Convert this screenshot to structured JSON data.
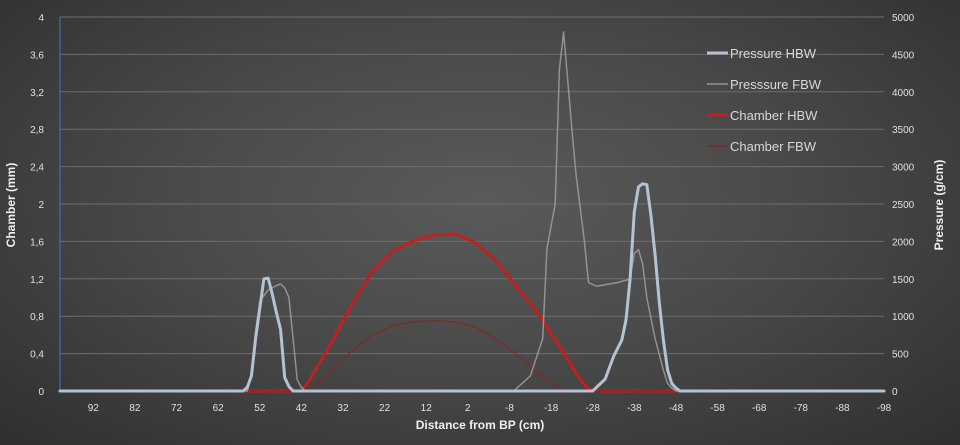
{
  "chart_data": {
    "type": "line",
    "title": "",
    "xlabel": "Distance from BP (cm)",
    "ylabel": "Chamber (mm)",
    "y2label": "Pressure (g/cm)",
    "xlim": [
      100,
      -98
    ],
    "ylim": [
      0,
      4
    ],
    "y2lim": [
      0,
      5000
    ],
    "x_ticks": [
      "92",
      "82",
      "72",
      "62",
      "52",
      "42",
      "32",
      "22",
      "12",
      "2",
      "-8",
      "-18",
      "-28",
      "-38",
      "-48",
      "-58",
      "-68",
      "-78",
      "-88",
      "-98"
    ],
    "y_ticks": [
      "0",
      "0,4",
      "0,8",
      "1,2",
      "1,6",
      "2",
      "2,4",
      "2,8",
      "3,2",
      "3,6",
      "4"
    ],
    "y2_ticks": [
      "0",
      "500",
      "1000",
      "1500",
      "2000",
      "2500",
      "3000",
      "3500",
      "4000",
      "4500",
      "5000"
    ],
    "grid": true,
    "legend_position": "top-right",
    "series": [
      {
        "name": "Pressure HBW",
        "axis": "right",
        "color": "#b4c2d4",
        "x": [
          100,
          58,
          56,
          55,
          54,
          53,
          51,
          50,
          49,
          48,
          47,
          46,
          45,
          44,
          42,
          40,
          -20,
          -28,
          -31,
          -33,
          -35,
          -36,
          -37,
          -38,
          -39,
          -40,
          -41,
          -42,
          -43,
          -44,
          -45,
          -46,
          -47,
          -48,
          -49,
          -52,
          -98
        ],
        "y": [
          0,
          0,
          0,
          50,
          200,
          700,
          1500,
          1510,
          1300,
          1050,
          820,
          180,
          60,
          0,
          0,
          0,
          0,
          0,
          160,
          460,
          680,
          950,
          1500,
          2400,
          2730,
          2770,
          2760,
          2350,
          1820,
          1180,
          680,
          280,
          100,
          40,
          0,
          0,
          0
        ]
      },
      {
        "name": "Presssure FBW",
        "axis": "right",
        "color": "#9a9a9a",
        "x": [
          100,
          55,
          54,
          53,
          52,
          50,
          48,
          47,
          46,
          45,
          44,
          43,
          42,
          41,
          -5,
          -9,
          -13,
          -16,
          -17,
          -19,
          -20,
          -21,
          -23,
          -24,
          -26,
          -27,
          -29,
          -34,
          -36,
          -37,
          -38,
          -39,
          -40,
          -41,
          -43,
          -45,
          -46,
          -47,
          -48,
          -98
        ],
        "y": [
          0,
          0,
          200,
          800,
          1200,
          1350,
          1410,
          1430,
          1380,
          1250,
          700,
          150,
          50,
          0,
          0,
          0,
          200,
          700,
          1900,
          2500,
          4300,
          4800,
          3500,
          2900,
          2000,
          1450,
          1400,
          1450,
          1480,
          1500,
          1840,
          1890,
          1700,
          1250,
          700,
          280,
          100,
          40,
          0,
          0
        ]
      },
      {
        "name": "Chamber HBW",
        "axis": "left",
        "color": "#c02020",
        "x": [
          84,
          42,
          40,
          35,
          30,
          25,
          20,
          15,
          10,
          5,
          0,
          -5,
          -10,
          -15,
          -20,
          -25,
          -27,
          -30,
          -78
        ],
        "y": [
          0,
          0,
          0.12,
          0.5,
          0.92,
          1.28,
          1.5,
          1.61,
          1.67,
          1.68,
          1.58,
          1.38,
          1.1,
          0.82,
          0.48,
          0.12,
          0.02,
          0,
          0
        ]
      },
      {
        "name": "Chamber FBW",
        "axis": "left",
        "color": "#8e2222",
        "x": [
          84,
          42,
          40,
          35,
          30,
          25,
          20,
          15,
          10,
          5,
          0,
          -5,
          -10,
          -15,
          -20,
          -22,
          -78
        ],
        "y": [
          0,
          0,
          0.02,
          0.2,
          0.42,
          0.6,
          0.7,
          0.74,
          0.75,
          0.74,
          0.68,
          0.55,
          0.38,
          0.18,
          0.03,
          0,
          0
        ]
      }
    ]
  }
}
